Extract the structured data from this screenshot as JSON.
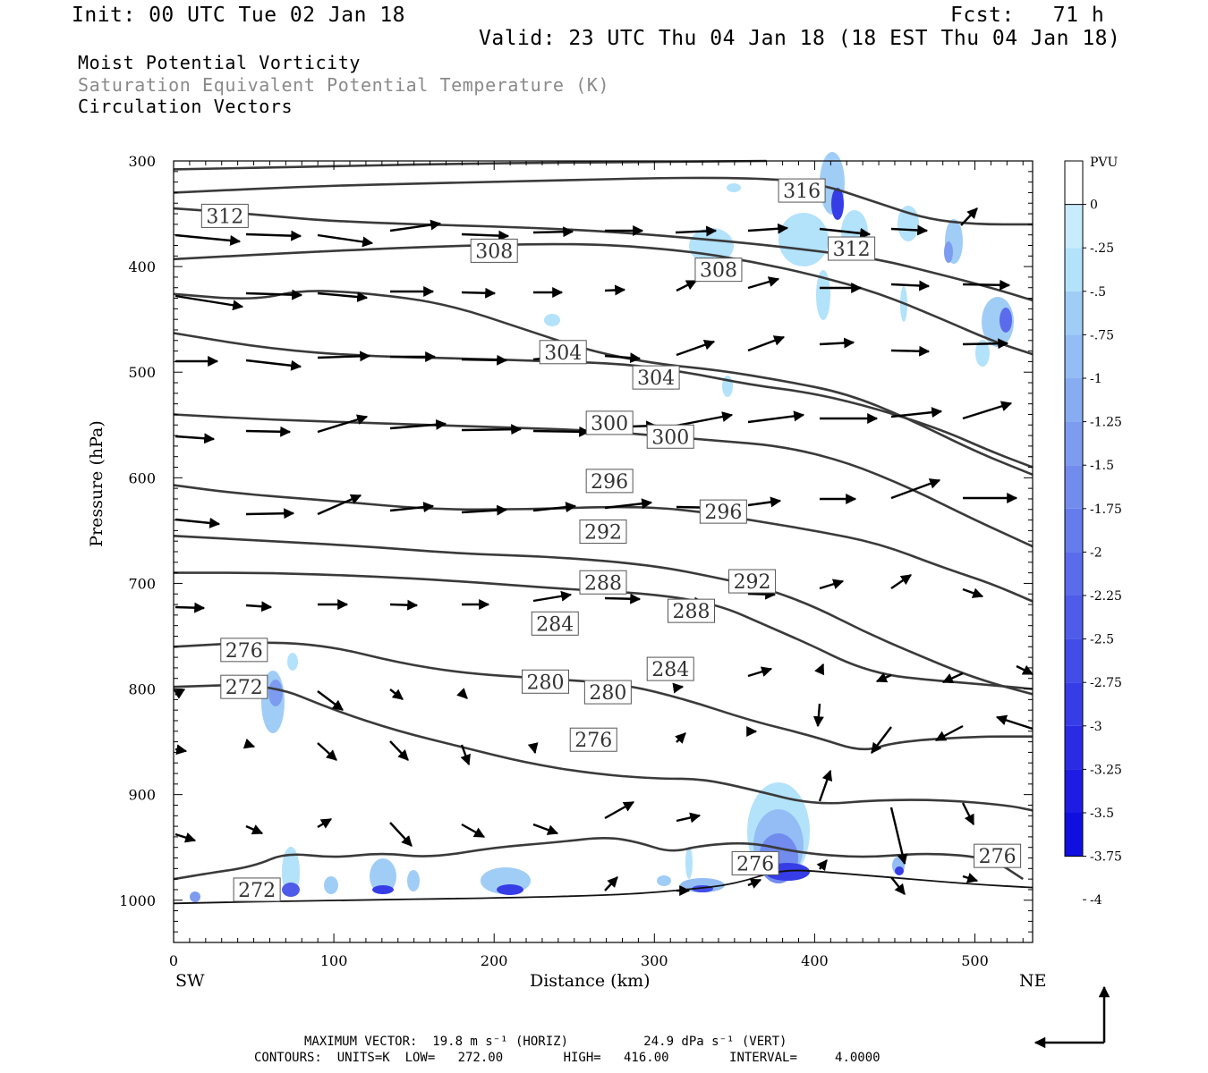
{
  "header": {
    "init": "Init: 00 UTC Tue 02 Jan 18",
    "fcst": "Fcst:   71 h",
    "valid": "Valid: 23 UTC Thu 04 Jan 18 (18 EST Thu 04 Jan 18)",
    "fields": [
      "Moist Potential Vorticity",
      "Saturation Equivalent Potential Temperature (K)",
      "Circulation Vectors"
    ]
  },
  "footer": {
    "max_vector": "MAXIMUM VECTOR:  19.8 m s⁻¹ (HORIZ)          24.9 dPa s⁻¹ (VERT)",
    "contours": "CONTOURS:  UNITS=K  LOW=   272.00        HIGH=   416.00        INTERVAL=     4.0000"
  },
  "colors": {
    "contour": "#3a3a3a",
    "pv_shades": [
      "#ffffff",
      "#c8ecfb",
      "#b3e2fb",
      "#a0cdf6",
      "#93bdf4",
      "#88acf2",
      "#7d9cf0",
      "#728cee",
      "#667ced",
      "#5a6ceb",
      "#4e5ce9",
      "#424ce7",
      "#363ce6",
      "#2a2ce4",
      "#1e1ce2",
      "#0f0fe0"
    ]
  },
  "chart_data": {
    "type": "cross-section",
    "xlabel": "Distance (km)",
    "ylabel": "Pressure (hPa)",
    "x_ticks": [
      0,
      100,
      200,
      300,
      400,
      500
    ],
    "y_ticks": [
      300,
      400,
      500,
      600,
      700,
      800,
      900,
      1000
    ],
    "xlim": [
      0,
      536
    ],
    "ylim": [
      1040,
      300
    ],
    "left_endpoint": "SW",
    "right_endpoint": "NE",
    "colorbar": {
      "unit": "PVU",
      "labels": [
        "0",
        "-.25",
        "-.5",
        "-.75",
        "-1",
        "-1.25",
        "-1.5",
        "-1.75",
        "-2",
        "-2.25",
        "-2.5",
        "-2.75",
        "-3",
        "-3.25",
        "-3.5",
        "-3.75",
        "-4"
      ]
    },
    "contours": [
      {
        "level": 316,
        "points": [
          [
            0,
            308
          ],
          [
            100,
            305
          ],
          [
            200,
            302
          ],
          [
            300,
            301
          ],
          [
            370,
            300
          ]
        ]
      },
      {
        "level": 312,
        "points": [
          [
            0,
            330
          ],
          [
            100,
            323
          ],
          [
            200,
            320
          ],
          [
            300,
            316
          ],
          [
            360,
            316
          ],
          [
            400,
            320
          ],
          [
            440,
            340
          ],
          [
            470,
            355
          ],
          [
            500,
            360
          ],
          [
            536,
            360
          ]
        ]
      },
      {
        "level": 312,
        "points": [
          [
            0,
            345
          ],
          [
            30,
            348
          ],
          [
            60,
            352
          ],
          [
            100,
            357
          ],
          [
            150,
            360
          ],
          [
            200,
            362
          ],
          [
            250,
            365
          ],
          [
            300,
            370
          ],
          [
            360,
            378
          ],
          [
            400,
            385
          ],
          [
            440,
            393
          ],
          [
            480,
            408
          ],
          [
            510,
            420
          ],
          [
            536,
            432
          ]
        ]
      },
      {
        "level": 308,
        "points": [
          [
            0,
            393
          ],
          [
            100,
            385
          ],
          [
            180,
            380
          ],
          [
            260,
            378
          ],
          [
            320,
            385
          ],
          [
            360,
            395
          ],
          [
            400,
            408
          ],
          [
            440,
            425
          ],
          [
            480,
            450
          ],
          [
            510,
            470
          ],
          [
            536,
            483
          ]
        ]
      },
      {
        "level": 304,
        "points": [
          [
            0,
            426
          ],
          [
            50,
            432
          ],
          [
            80,
            422
          ],
          [
            120,
            425
          ],
          [
            170,
            435
          ],
          [
            220,
            460
          ],
          [
            260,
            480
          ],
          [
            300,
            492
          ],
          [
            340,
            498
          ],
          [
            380,
            508
          ],
          [
            420,
            520
          ],
          [
            460,
            545
          ],
          [
            500,
            575
          ],
          [
            536,
            597
          ]
        ]
      },
      {
        "level": 304,
        "points": [
          [
            0,
            463
          ],
          [
            60,
            478
          ],
          [
            120,
            485
          ],
          [
            180,
            487
          ],
          [
            240,
            490
          ],
          [
            280,
            492
          ],
          [
            320,
            500
          ],
          [
            360,
            512
          ],
          [
            400,
            520
          ],
          [
            440,
            535
          ],
          [
            480,
            555
          ],
          [
            510,
            575
          ],
          [
            536,
            590
          ]
        ]
      },
      {
        "level": 300,
        "points": [
          [
            0,
            540
          ],
          [
            60,
            545
          ],
          [
            120,
            548
          ],
          [
            200,
            552
          ],
          [
            260,
            555
          ],
          [
            300,
            560
          ],
          [
            340,
            565
          ],
          [
            380,
            570
          ],
          [
            420,
            585
          ],
          [
            460,
            610
          ],
          [
            500,
            640
          ],
          [
            536,
            665
          ]
        ]
      },
      {
        "level": 296,
        "points": [
          [
            0,
            607
          ],
          [
            40,
            615
          ],
          [
            100,
            622
          ],
          [
            160,
            630
          ],
          [
            220,
            630
          ],
          [
            280,
            627
          ],
          [
            320,
            630
          ],
          [
            360,
            640
          ],
          [
            400,
            650
          ],
          [
            440,
            662
          ],
          [
            480,
            685
          ],
          [
            510,
            700
          ],
          [
            536,
            717
          ]
        ]
      },
      {
        "level": 292,
        "points": [
          [
            0,
            655
          ],
          [
            60,
            660
          ],
          [
            120,
            665
          ],
          [
            180,
            672
          ],
          [
            240,
            675
          ],
          [
            300,
            683
          ],
          [
            340,
            695
          ],
          [
            370,
            705
          ],
          [
            400,
            722
          ],
          [
            430,
            745
          ],
          [
            460,
            765
          ],
          [
            500,
            790
          ],
          [
            536,
            805
          ]
        ]
      },
      {
        "level": 288,
        "points": [
          [
            0,
            690
          ],
          [
            60,
            690
          ],
          [
            120,
            693
          ],
          [
            180,
            698
          ],
          [
            240,
            705
          ],
          [
            300,
            710
          ],
          [
            340,
            720
          ],
          [
            370,
            740
          ],
          [
            400,
            760
          ],
          [
            420,
            775
          ],
          [
            440,
            785
          ],
          [
            460,
            790
          ],
          [
            500,
            795
          ],
          [
            536,
            800
          ]
        ]
      },
      {
        "level": 284,
        "points": [
          [
            0,
            760
          ],
          [
            60,
            755
          ],
          [
            100,
            760
          ],
          [
            140,
            775
          ],
          [
            180,
            785
          ],
          [
            230,
            790
          ],
          [
            280,
            795
          ],
          [
            320,
            810
          ],
          [
            360,
            830
          ],
          [
            400,
            845
          ],
          [
            430,
            860
          ],
          [
            450,
            850
          ],
          [
            500,
            845
          ],
          [
            536,
            845
          ]
        ]
      },
      {
        "level": 280,
        "points": [
          [
            0,
            798
          ],
          [
            60,
            795
          ],
          [
            100,
            820
          ],
          [
            140,
            840
          ],
          [
            180,
            855
          ],
          [
            220,
            870
          ],
          [
            260,
            880
          ],
          [
            300,
            885
          ],
          [
            330,
            885
          ],
          [
            360,
            895
          ],
          [
            400,
            910
          ],
          [
            440,
            905
          ],
          [
            480,
            905
          ],
          [
            520,
            910
          ],
          [
            536,
            915
          ]
        ]
      },
      {
        "level": 276,
        "points": [
          [
            0,
            980
          ],
          [
            20,
            975
          ],
          [
            50,
            968
          ],
          [
            70,
            955
          ],
          [
            100,
            960
          ],
          [
            130,
            955
          ],
          [
            160,
            960
          ],
          [
            200,
            950
          ],
          [
            240,
            945
          ],
          [
            270,
            940
          ],
          [
            290,
            945
          ],
          [
            310,
            955
          ],
          [
            330,
            948
          ],
          [
            360,
            945
          ],
          [
            390,
            955
          ],
          [
            430,
            960
          ],
          [
            470,
            955
          ],
          [
            510,
            960
          ],
          [
            530,
            980
          ]
        ]
      },
      {
        "level": 272,
        "points": [
          [
            0,
            1003
          ],
          [
            100,
            1000
          ],
          [
            200,
            998
          ],
          [
            280,
            995
          ],
          [
            320,
            990
          ],
          [
            350,
            985
          ],
          [
            380,
            970
          ],
          [
            420,
            975
          ],
          [
            460,
            980
          ],
          [
            500,
            985
          ],
          [
            536,
            988
          ]
        ]
      }
    ],
    "contour_labels": [
      {
        "value": "316",
        "x": 392,
        "p": 328
      },
      {
        "value": "312",
        "x": 32,
        "p": 352
      },
      {
        "value": "312",
        "x": 423,
        "p": 383
      },
      {
        "value": "308",
        "x": 200,
        "p": 385
      },
      {
        "value": "308",
        "x": 340,
        "p": 403
      },
      {
        "value": "304",
        "x": 243,
        "p": 481
      },
      {
        "value": "304",
        "x": 301,
        "p": 505
      },
      {
        "value": "300",
        "x": 272,
        "p": 548
      },
      {
        "value": "300",
        "x": 310,
        "p": 561
      },
      {
        "value": "296",
        "x": 272,
        "p": 603
      },
      {
        "value": "296",
        "x": 343,
        "p": 632
      },
      {
        "value": "292",
        "x": 268,
        "p": 651
      },
      {
        "value": "292",
        "x": 361,
        "p": 698
      },
      {
        "value": "288",
        "x": 268,
        "p": 699
      },
      {
        "value": "288",
        "x": 323,
        "p": 726
      },
      {
        "value": "284",
        "x": 238,
        "p": 738
      },
      {
        "value": "284",
        "x": 310,
        "p": 781
      },
      {
        "value": "280",
        "x": 232,
        "p": 793
      },
      {
        "value": "280",
        "x": 271,
        "p": 803
      },
      {
        "value": "276",
        "x": 44,
        "p": 763
      },
      {
        "value": "272",
        "x": 44,
        "p": 798
      },
      {
        "value": "276",
        "x": 262,
        "p": 848
      },
      {
        "value": "276",
        "x": 363,
        "p": 965
      },
      {
        "value": "276",
        "x": 514,
        "p": 958
      },
      {
        "value": "272",
        "x": 52,
        "p": 990
      }
    ]
  }
}
